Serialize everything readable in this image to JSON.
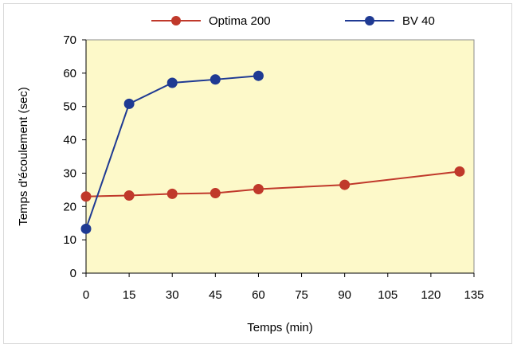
{
  "chart_data": {
    "type": "line",
    "title": "",
    "xlabel": "Temps (min)",
    "ylabel": "Temps d'écoulement (sec)",
    "xlim": [
      0,
      135
    ],
    "ylim": [
      0,
      70
    ],
    "x_ticks": [
      "0",
      "15",
      "30",
      "45",
      "60",
      "75",
      "90",
      "105",
      "120",
      "135"
    ],
    "y_ticks": [
      "0",
      "10",
      "20",
      "30",
      "40",
      "50",
      "60",
      "70"
    ],
    "grid": false,
    "legend_position": "top",
    "plot_background": "#fdf9c9",
    "series": [
      {
        "name": "Optima 200",
        "color": "#c0392b",
        "x": [
          0,
          15,
          30,
          45,
          60,
          90,
          130
        ],
        "y": [
          23,
          23.3,
          23.8,
          24,
          25.2,
          26.5,
          30.5
        ]
      },
      {
        "name": "BV 40",
        "color": "#1f3a93",
        "x": [
          0,
          15,
          30,
          45,
          60
        ],
        "y": [
          13.3,
          50.8,
          57.1,
          58.1,
          59.2
        ]
      }
    ]
  }
}
